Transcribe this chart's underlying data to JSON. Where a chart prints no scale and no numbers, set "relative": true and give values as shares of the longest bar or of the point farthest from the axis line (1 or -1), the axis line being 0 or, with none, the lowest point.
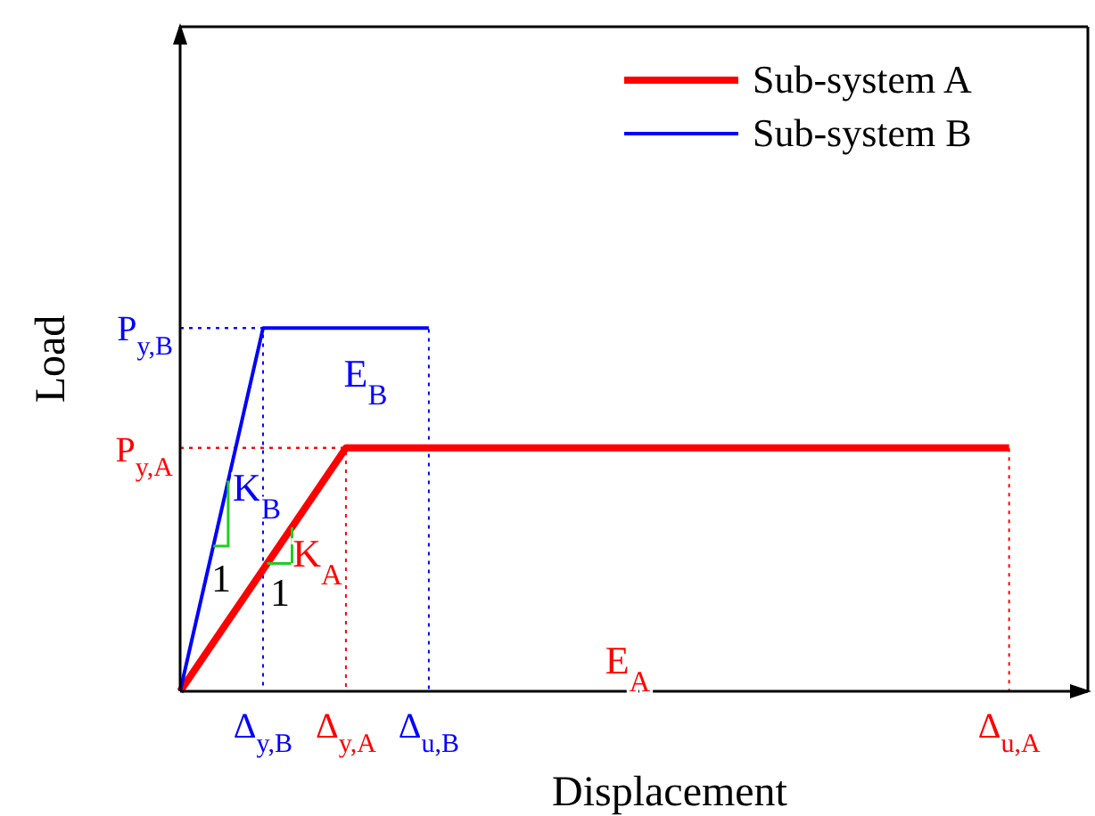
{
  "chart_data": {
    "type": "line",
    "xlabel": "Displacement",
    "ylabel": "Load",
    "relative": true,
    "legend": "top right",
    "marker": "none",
    "line_style": "solid",
    "categories": [
      null,
      "Δ$_{y,B}$",
      "Δ$_{y,A}$",
      "Δ$_{u,B}$",
      null,
      null,
      null,
      null,
      null,
      null,
      "Δ$_{u,A}$"
    ],
    "series": [
      {
        "name": "Sub-system A",
        "color": "#ff0000",
        "values": [
          0,
          0.335,
          0.67,
          0.67,
          0.67,
          0.67,
          0.67,
          0.67,
          0.67,
          0.67,
          0.67
        ]
      },
      {
        "name": "Sub-system B",
        "color": "#0000ff",
        "values": [
          0,
          1,
          1,
          1,
          null,
          null,
          null,
          null,
          null,
          null,
          null
        ]
      }
    ],
    "annotations": [
      "P$_{y,A}$",
      "P$_{y,B}$",
      "E$_{B}$",
      "E$_{A}$",
      "K$_{B}$",
      "1",
      "K$_{A}$",
      "1"
    ]
  }
}
